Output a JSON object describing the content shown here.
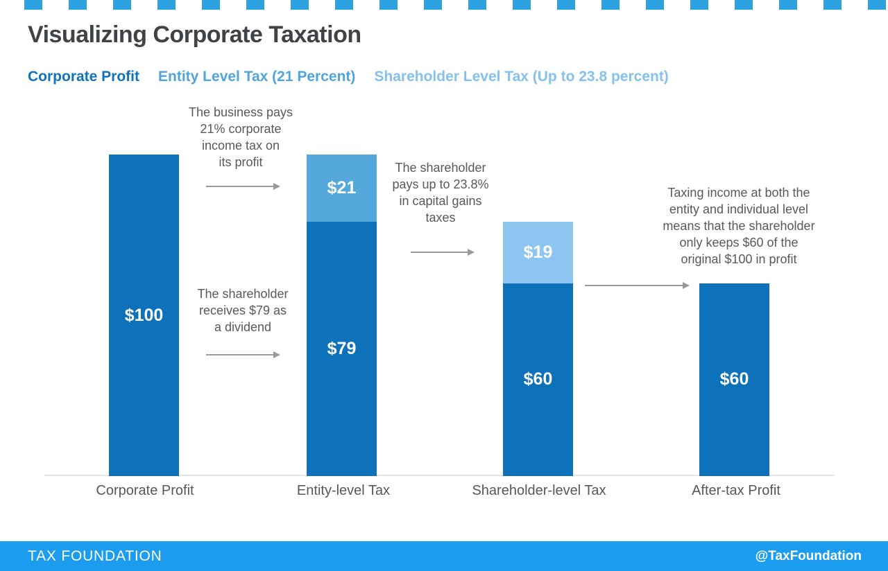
{
  "page": {
    "title": "Visualizing Corporate Taxation"
  },
  "colors": {
    "dark_blue": "#0E72BA",
    "medium_blue": "#55A8DC",
    "light_blue": "#8DC5F1",
    "footer_blue": "#1B9CEF",
    "top_accent_blue": "#2BA2DF",
    "title_gray": "#3F4347",
    "annotation_gray": "#58595B",
    "arrow_gray": "#97999B",
    "axis_line_gray": "#E4E4E4"
  },
  "legend": {
    "items": [
      {
        "label": "Corporate Profit",
        "color": "#0F72BA"
      },
      {
        "label": "Entity Level Tax (21 Percent)",
        "color": "#4FA5DB"
      },
      {
        "label": "Shareholder Level Tax (Up to 23.8 percent)",
        "color": "#85C1ED"
      }
    ]
  },
  "chart_data": {
    "type": "bar",
    "stacked": true,
    "title": "Visualizing Corporate Taxation",
    "categories": [
      "Corporate Profit",
      "Entity-level Tax",
      "Shareholder-level Tax",
      "After-tax Profit"
    ],
    "series": [
      {
        "name": "Corporate Profit",
        "color": "#0E72BA",
        "values": [
          100,
          79,
          60,
          60
        ]
      },
      {
        "name": "Entity Level Tax (21 Percent)",
        "color": "#55A8DC",
        "values": [
          0,
          21,
          0,
          0
        ]
      },
      {
        "name": "Shareholder Level Tax (Up to 23.8 percent)",
        "color": "#8DC5F1",
        "values": [
          0,
          0,
          19,
          0
        ]
      }
    ],
    "value_prefix": "$",
    "bar_value_labels": [
      "$100",
      "$21",
      "$79",
      "$19",
      "$60",
      "$60"
    ],
    "ylim": [
      0,
      100
    ],
    "grid": false,
    "legend_position": "top-left",
    "xlabel": "",
    "ylabel": ""
  },
  "annotations": {
    "items": [
      {
        "text": "The business pays\n21% corporate\nincome tax on\nits profit"
      },
      {
        "text": "The shareholder\nreceives $79 as\na dividend"
      },
      {
        "text": "The shareholder\npays up to 23.8%\nin capital gains\ntaxes"
      },
      {
        "text": "Taxing income at both the\nentity and individual level\nmeans that the shareholder\nonly keeps $60 of the\noriginal $100 in profit"
      }
    ]
  },
  "footer": {
    "brand": "TAX FOUNDATION",
    "handle": "@TaxFoundation"
  }
}
